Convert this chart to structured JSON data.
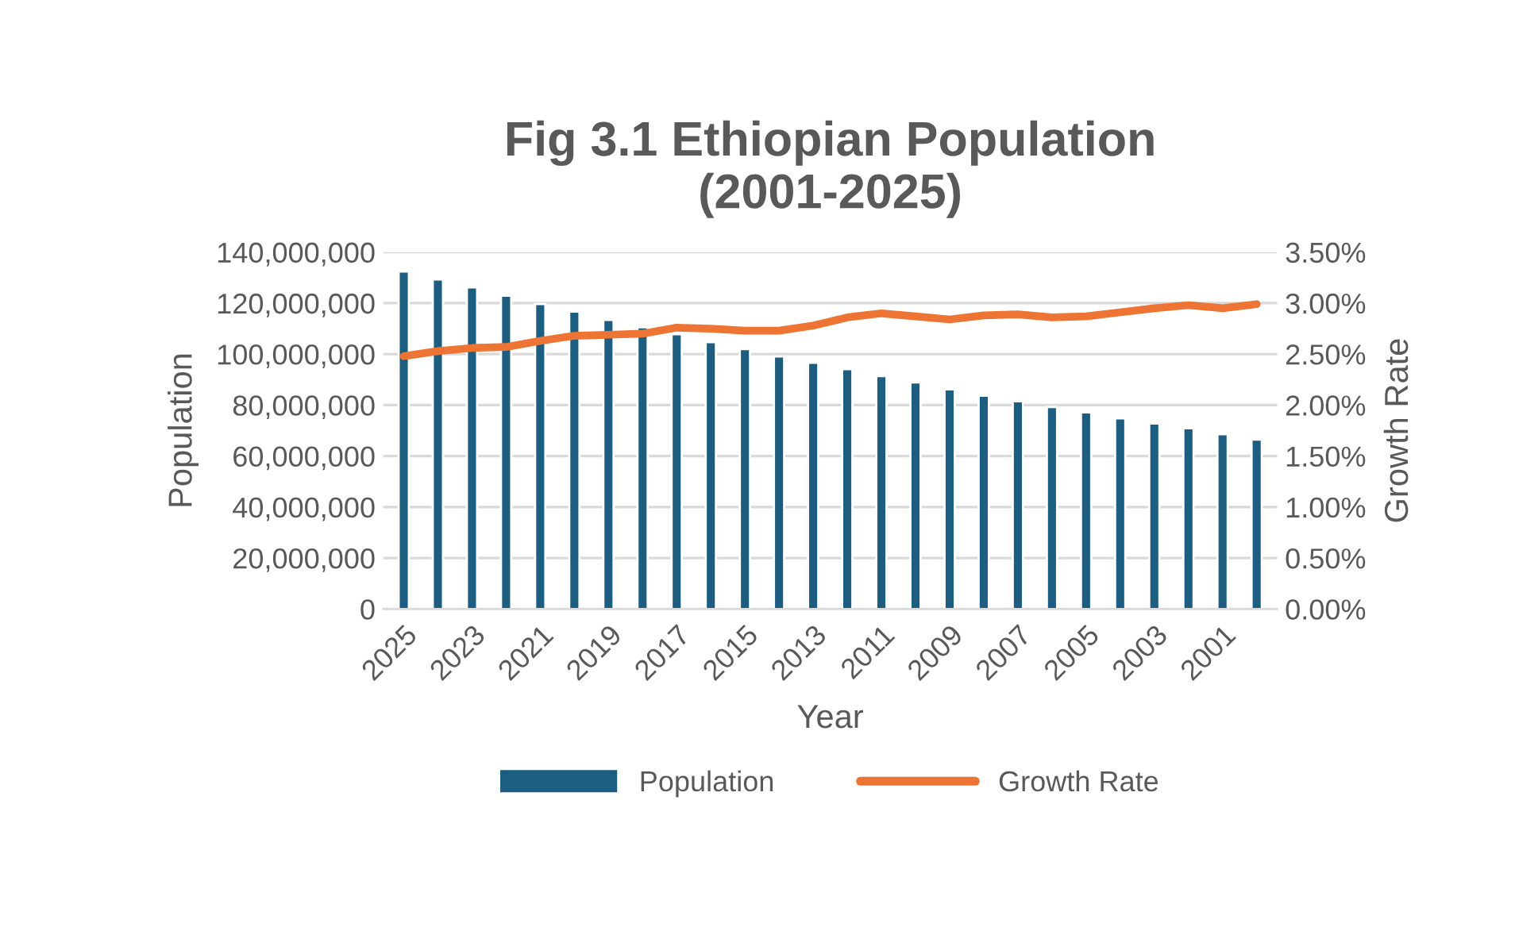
{
  "chart_data": {
    "type": "bar",
    "title": "Fig 3.1 Ethiopian Population\n(2001-2025)",
    "xlabel": "Year",
    "ylabel": "Population",
    "y2label": "Growth Rate",
    "categories": [
      "2025",
      null,
      "2023",
      null,
      "2021",
      null,
      "2019",
      null,
      "2017",
      null,
      "2015",
      null,
      "2013",
      null,
      "2011",
      null,
      "2009",
      null,
      "2007",
      null,
      "2005",
      null,
      "2003",
      null,
      "2001",
      null
    ],
    "series": [
      {
        "name": "Population",
        "color": "#1b5e82",
        "values": [
          132400000,
          129300000,
          126200000,
          122900000,
          119600000,
          116700000,
          113400000,
          110500000,
          107800000,
          104700000,
          102000000,
          99100000,
          96600000,
          94100000,
          91400000,
          88900000,
          86200000,
          83700000,
          81500000,
          79200000,
          77100000,
          74800000,
          72800000,
          70900000,
          68600000,
          66500000
        ]
      },
      {
        "name": "Growth Rate",
        "type": "line",
        "axis": "y2",
        "color": "#ed7433",
        "values": [
          2.48,
          2.53,
          2.56,
          2.57,
          2.63,
          2.68,
          2.69,
          2.7,
          2.76,
          2.75,
          2.73,
          2.73,
          2.78,
          2.86,
          2.9,
          2.87,
          2.84,
          2.88,
          2.89,
          2.86,
          2.87,
          2.91,
          2.95,
          2.98,
          2.95,
          2.99
        ]
      }
    ],
    "ylim": [
      0,
      140000000
    ],
    "yticks": [
      {
        "value": 0,
        "label": "0"
      },
      {
        "value": 20000000,
        "label": "20,000,000"
      },
      {
        "value": 40000000,
        "label": "40,000,000"
      },
      {
        "value": 60000000,
        "label": "60,000,000"
      },
      {
        "value": 80000000,
        "label": "80,000,000"
      },
      {
        "value": 100000000,
        "label": "100,000,000"
      },
      {
        "value": 120000000,
        "label": "120,000,000"
      },
      {
        "value": 140000000,
        "label": "140,000,000"
      }
    ],
    "y2lim": [
      0,
      3.5
    ],
    "y2ticks": [
      {
        "value": 0,
        "label": "0.00%"
      },
      {
        "value": 0.5,
        "label": "0.50%"
      },
      {
        "value": 1,
        "label": "1.00%"
      },
      {
        "value": 1.5,
        "label": "1.50%"
      },
      {
        "value": 2,
        "label": "2.00%"
      },
      {
        "value": 2.5,
        "label": "2.50%"
      },
      {
        "value": 3,
        "label": "3.00%"
      },
      {
        "value": 3.5,
        "label": "3.50%"
      }
    ],
    "grid": "y",
    "legend": "bottom"
  }
}
